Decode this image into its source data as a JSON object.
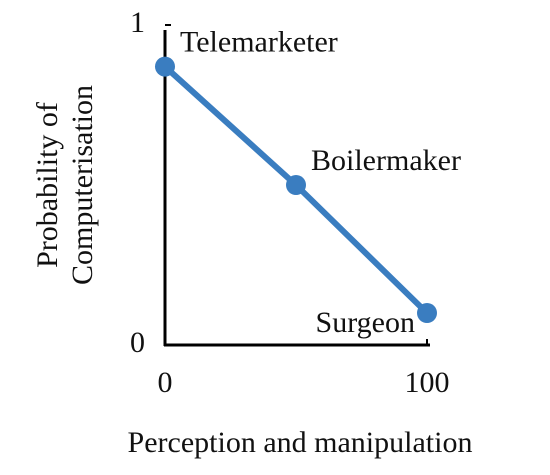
{
  "chart_data": {
    "type": "line",
    "x_label": "Perception and manipulation",
    "y_label": [
      "Probability of",
      "Computerisation"
    ],
    "x": [
      0,
      50,
      100
    ],
    "series": [
      {
        "color": "#3a7dc0",
        "values": [
          0.87,
          0.5,
          0.1
        ]
      }
    ],
    "point_labels": [
      "Telemarketer",
      "Boilermaker",
      "Surgeon"
    ],
    "xlim": [
      0,
      100
    ],
    "xticks": [
      0,
      100
    ],
    "ylim": [
      0,
      1
    ],
    "yticks": [
      0,
      1
    ],
    "grid": false
  }
}
